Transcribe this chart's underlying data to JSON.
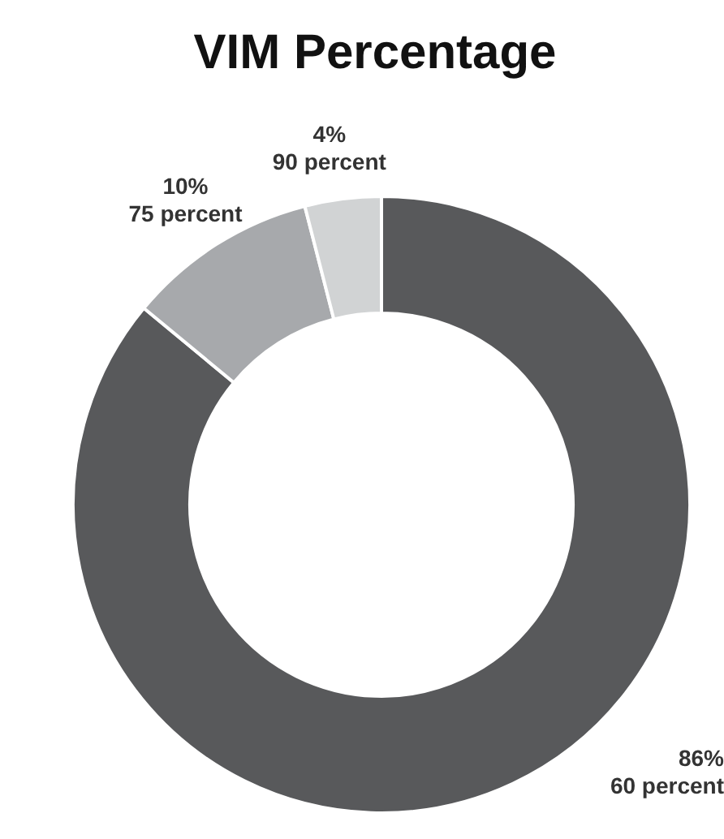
{
  "chart_data": {
    "type": "donut",
    "title": "VIM Percentage",
    "categories": [
      "60 percent",
      "75 percent",
      "90 percent"
    ],
    "values": [
      86,
      10,
      4
    ],
    "value_labels": [
      "86%",
      "10%",
      "4%"
    ],
    "colors": [
      "#58595b",
      "#a7a9ac",
      "#d1d3d4"
    ]
  }
}
